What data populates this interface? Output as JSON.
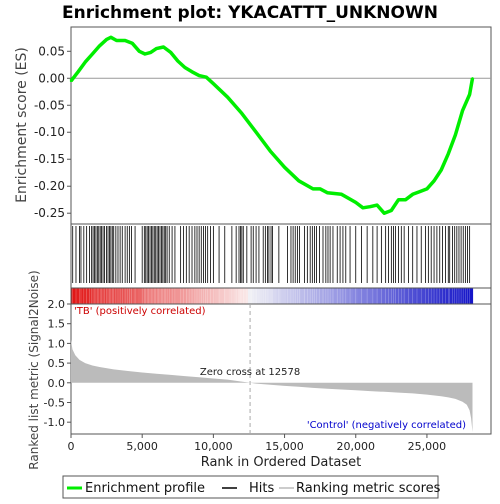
{
  "chart_data": {
    "type": "line",
    "title": "Enrichment plot: YKACATTT_UNKNOWN",
    "top_panel": {
      "ylabel": "Enrichment score (ES)",
      "ylim": [
        -0.27,
        0.095
      ],
      "yticks": [
        0.05,
        0.0,
        -0.05,
        -0.1,
        -0.15,
        -0.2,
        -0.25
      ],
      "ytick_labels": [
        "0.05",
        "0.00",
        "-0.05",
        "-0.10",
        "-0.15",
        "-0.20",
        "-0.25"
      ],
      "series": [
        {
          "name": "Enrichment profile",
          "color": "#00ee00",
          "x": [
            0,
            500,
            1000,
            1500,
            2000,
            2500,
            2800,
            3200,
            3800,
            4300,
            4800,
            5200,
            5600,
            6000,
            6500,
            7000,
            7500,
            8000,
            8500,
            9000,
            9500,
            10000,
            11000,
            12000,
            13000,
            14000,
            15000,
            16000,
            17000,
            17500,
            18000,
            19000,
            20000,
            20500,
            21000,
            21500,
            22000,
            22500,
            23000,
            23500,
            24000,
            24500,
            25000,
            25500,
            26000,
            26500,
            27000,
            27500,
            28000,
            28200
          ],
          "y": [
            -0.005,
            0.012,
            0.03,
            0.045,
            0.06,
            0.072,
            0.076,
            0.07,
            0.07,
            0.065,
            0.05,
            0.045,
            0.048,
            0.055,
            0.058,
            0.048,
            0.032,
            0.02,
            0.012,
            0.005,
            0.002,
            -0.01,
            -0.035,
            -0.065,
            -0.1,
            -0.135,
            -0.165,
            -0.19,
            -0.205,
            -0.205,
            -0.212,
            -0.215,
            -0.23,
            -0.24,
            -0.238,
            -0.235,
            -0.25,
            -0.245,
            -0.225,
            -0.225,
            -0.215,
            -0.21,
            -0.205,
            -0.19,
            -0.17,
            -0.14,
            -0.105,
            -0.06,
            -0.03,
            0.0
          ]
        }
      ]
    },
    "hits_panel": {
      "hit_ranks": [
        120,
        350,
        600,
        700,
        900,
        1100,
        1300,
        1450,
        1550,
        1650,
        1750,
        1850,
        1950,
        2050,
        2150,
        2250,
        2350,
        2500,
        2600,
        2700,
        2800,
        2900,
        3000,
        3150,
        3300,
        3450,
        3600,
        3800,
        3950,
        4100,
        4250,
        4500,
        5000,
        5150,
        5250,
        5350,
        5450,
        5550,
        5650,
        5750,
        5850,
        5950,
        6050,
        6150,
        6250,
        6350,
        6450,
        6550,
        6650,
        6750,
        6900,
        7100,
        7300,
        7700,
        7900,
        8100,
        8300,
        8500,
        8700,
        8850,
        9000,
        9150,
        9300,
        9450,
        9600,
        9800,
        10000,
        10400,
        10800,
        11300,
        11600,
        11800,
        11900,
        12000,
        12100,
        12350,
        12650,
        12800,
        13000,
        13200,
        13500,
        13650,
        13800,
        13900,
        14050,
        14150,
        14600,
        15200,
        15450,
        15600,
        15750,
        15900,
        16050,
        16400,
        16600,
        16800,
        16950,
        17100,
        17250,
        17450,
        17700,
        17900,
        18050,
        18200,
        18400,
        18700,
        18900,
        19100,
        19300,
        19600,
        20000,
        20400,
        20800,
        21200,
        21500,
        21800,
        22100,
        22300,
        22500,
        22650,
        22800,
        23000,
        23200,
        23400,
        23700,
        24000,
        24300,
        24600,
        24900,
        25100,
        25300,
        25500,
        25700,
        25900,
        26100,
        26300,
        26500,
        26600,
        26800,
        26950,
        27100,
        27250,
        27400,
        27550,
        27700,
        27850,
        28000
      ]
    },
    "bottom_panel": {
      "ylabel": "Ranked list metric (Signal2Noise)",
      "xlabel": "Rank in Ordered Dataset",
      "ylim": [
        -1.3,
        2.0
      ],
      "yticks": [
        2.0,
        1.5,
        1.0,
        0.5,
        0.0,
        -0.5,
        -1.0
      ],
      "ytick_labels": [
        "2.0",
        "1.5",
        "1.0",
        "0.5",
        "0.0",
        "-0.5",
        "-1.0"
      ],
      "xlim": [
        0,
        29500
      ],
      "xticks": [
        0,
        5000,
        10000,
        15000,
        20000,
        25000
      ],
      "xtick_labels": [
        "0",
        "5,000",
        "10,000",
        "15,000",
        "20,000",
        "25,000"
      ],
      "metric_x": [
        0,
        100,
        300,
        600,
        1000,
        1500,
        2000,
        3000,
        4000,
        5000,
        6000,
        7000,
        8000,
        9000,
        10000,
        11000,
        12000,
        12578,
        13000,
        14000,
        15000,
        16000,
        17000,
        18000,
        19000,
        20000,
        21000,
        22000,
        23000,
        24000,
        25000,
        26000,
        26500,
        27000,
        27500,
        27800,
        28000,
        28100,
        28200
      ],
      "metric_y": [
        1.1,
        0.85,
        0.7,
        0.58,
        0.5,
        0.44,
        0.4,
        0.34,
        0.3,
        0.26,
        0.23,
        0.2,
        0.17,
        0.14,
        0.11,
        0.08,
        0.03,
        0.0,
        -0.02,
        -0.05,
        -0.08,
        -0.1,
        -0.13,
        -0.15,
        -0.17,
        -0.19,
        -0.21,
        -0.23,
        -0.25,
        -0.27,
        -0.3,
        -0.34,
        -0.37,
        -0.41,
        -0.48,
        -0.56,
        -0.7,
        -0.9,
        -1.25
      ],
      "zero_cross_label": "Zero cross at 12578",
      "zero_cross": 12578,
      "positive_label": "'TB' (positively correlated)",
      "negative_label": "'Control' (negatively correlated)"
    },
    "legend": {
      "position": "bottom",
      "items": [
        {
          "label": "Enrichment profile",
          "color": "#00ee00"
        },
        {
          "label": "Hits",
          "color": "#000000"
        },
        {
          "label": "Ranking metric scores",
          "color": "#bbbbbb"
        }
      ]
    },
    "n_genes": 28200,
    "colors": {
      "es_line": "#00ee00",
      "metric_fill": "#bbbbbb",
      "positive_text": "#cc0000",
      "negative_text": "#0000cc",
      "zero_line": "#aaaaaa",
      "frame": "#555555"
    }
  }
}
